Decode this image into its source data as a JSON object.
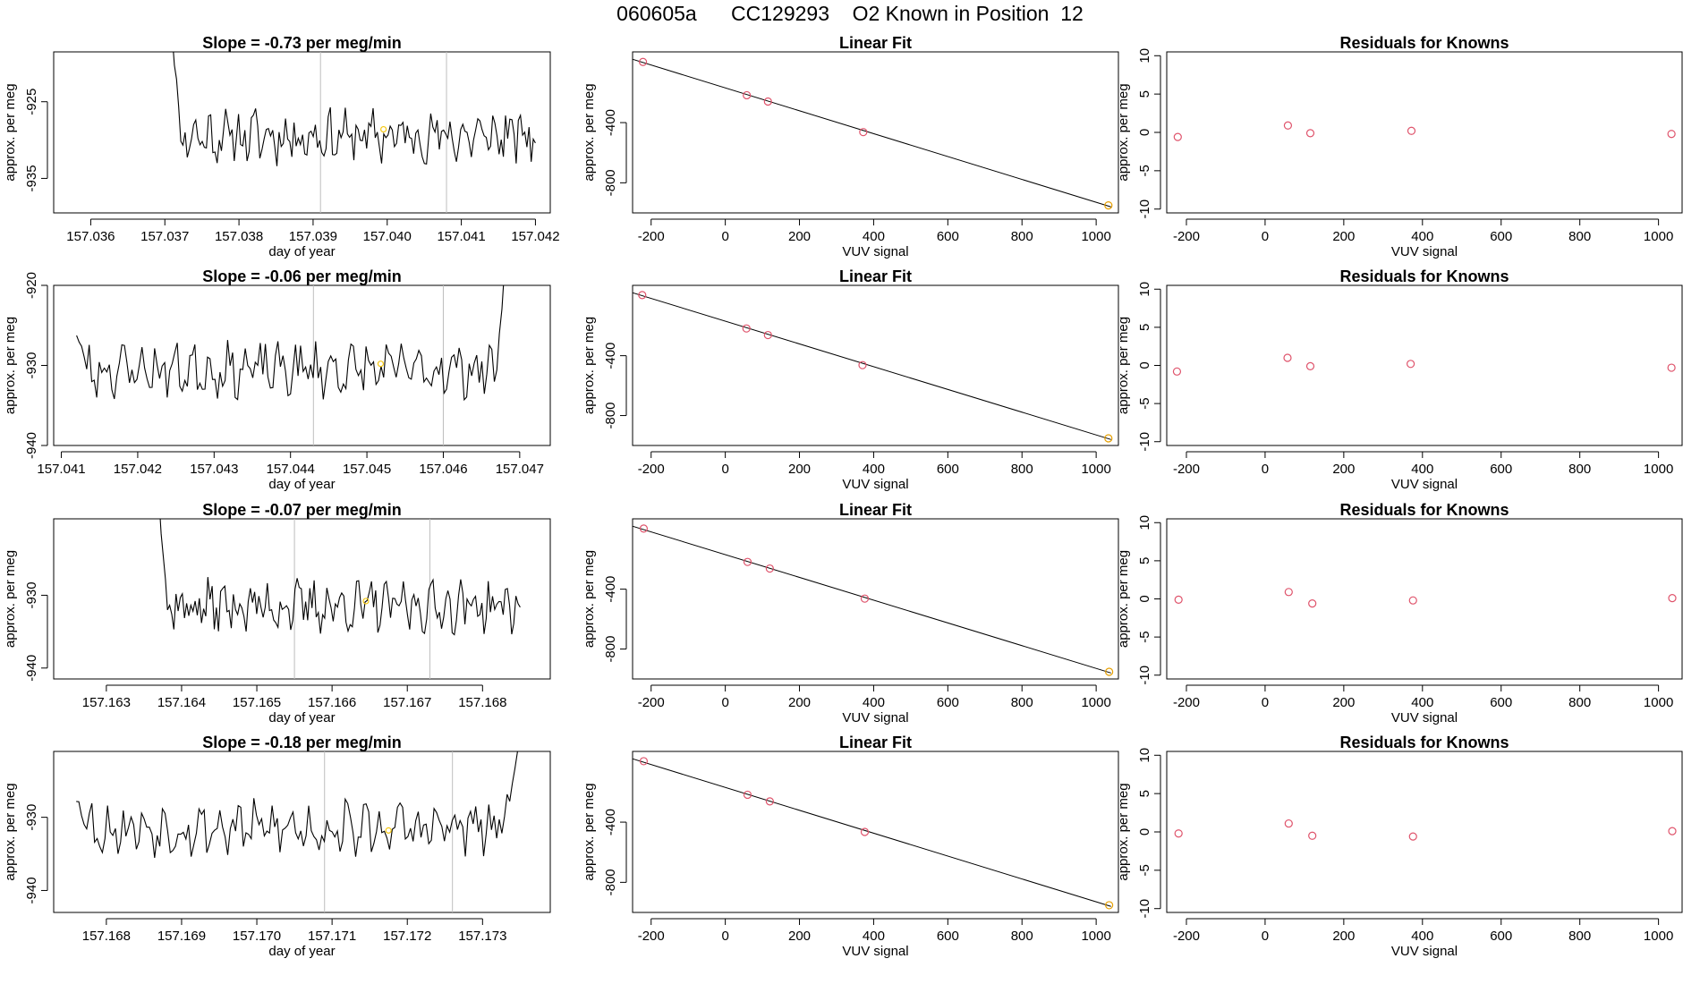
{
  "title": "060605a      CC129293    O2 Known in Position  12",
  "colors": {
    "line": "#000000",
    "point": "#DF536B",
    "highlight": "#F5C710",
    "vline": "#BEBEBE",
    "fitline": "#000000"
  },
  "chart_data": [
    {
      "type": "line",
      "row": 0,
      "col": 0,
      "title": "Slope =  -0.73  per meg/min",
      "xlabel": "day of year",
      "ylabel": "approx. per meg",
      "xlim": [
        157.0355,
        157.0422
      ],
      "ylim": [
        -939.5,
        -918.5
      ],
      "xticks": [
        157.036,
        157.037,
        157.038,
        157.039,
        157.04,
        157.041,
        157.042
      ],
      "xtick_labels": [
        "157.036",
        "157.037",
        "157.038",
        "157.039",
        "157.040",
        "157.041",
        "157.042"
      ],
      "yticks": [
        -925,
        -935
      ],
      "ytick_labels": [
        "-925",
        "-935"
      ],
      "vlines": [
        157.0391,
        157.0408
      ],
      "series_start": 157.0371,
      "series_end": 157.042,
      "start_y": -916,
      "level": -929.5,
      "amplitude": 2.6,
      "seed": 11,
      "rise_at_end": false,
      "highlight_point": [
        157.03995,
        -928.6
      ]
    },
    {
      "type": "line",
      "row": 1,
      "col": 0,
      "title": "Slope =  -0.06  per meg/min",
      "xlabel": "day of year",
      "ylabel": "approx. per meg",
      "xlim": [
        157.0409,
        157.0474
      ],
      "ylim": [
        -940,
        -920
      ],
      "xticks": [
        157.041,
        157.042,
        157.043,
        157.044,
        157.045,
        157.046,
        157.047
      ],
      "xtick_labels": [
        "157.041",
        "157.042",
        "157.043",
        "157.044",
        "157.045",
        "157.046",
        "157.047"
      ],
      "yticks": [
        -920,
        -930,
        -940
      ],
      "ytick_labels": [
        "-920",
        "-930",
        "-940"
      ],
      "vlines": [
        157.0443,
        157.046
      ],
      "series_start": 157.0412,
      "series_end": 157.0468,
      "start_y": -926,
      "level": -930.5,
      "amplitude": 2.5,
      "seed": 23,
      "rise_at_end": true,
      "rise_from": 157.0467,
      "rise_to_y": -918,
      "highlight_point": [
        157.04518,
        -929.8
      ]
    },
    {
      "type": "line",
      "row": 2,
      "col": 0,
      "title": "Slope =  -0.07  per meg/min",
      "xlabel": "day of year",
      "ylabel": "approx. per meg",
      "xlim": [
        157.1623,
        157.1689
      ],
      "ylim": [
        -941.5,
        -919.5
      ],
      "xticks": [
        157.163,
        157.164,
        157.165,
        157.166,
        157.167,
        157.168
      ],
      "xtick_labels": [
        "157.163",
        "157.164",
        "157.165",
        "157.166",
        "157.167",
        "157.168"
      ],
      "yticks": [
        -930,
        -940
      ],
      "ytick_labels": [
        "-930",
        "-940"
      ],
      "vlines": [
        157.1655,
        157.1673
      ],
      "series_start": 157.1637,
      "series_end": 157.1685,
      "start_y": -917,
      "level": -931.5,
      "amplitude": 2.6,
      "seed": 37,
      "rise_at_end": false,
      "highlight_point": [
        157.16645,
        -930.8
      ]
    },
    {
      "type": "line",
      "row": 3,
      "col": 0,
      "title": "Slope =  -0.18  per meg/min",
      "xlabel": "day of year",
      "ylabel": "approx. per meg",
      "xlim": [
        157.1673,
        157.1739
      ],
      "ylim": [
        -943,
        -921
      ],
      "xticks": [
        157.168,
        157.169,
        157.17,
        157.171,
        157.172,
        157.173
      ],
      "xtick_labels": [
        "157.168",
        "157.169",
        "157.170",
        "157.171",
        "157.172",
        "157.173"
      ],
      "yticks": [
        -930,
        -940
      ],
      "ytick_labels": [
        "-930",
        "-940"
      ],
      "vlines": [
        157.1709,
        157.1726
      ],
      "series_start": 157.1676,
      "series_end": 157.1735,
      "start_y": -927,
      "level": -931.5,
      "amplitude": 2.7,
      "seed": 53,
      "rise_at_end": true,
      "rise_from": 157.1733,
      "rise_to_y": -918,
      "highlight_point": [
        157.17175,
        -931.8
      ]
    },
    {
      "type": "scatter",
      "row": 0,
      "col": 1,
      "title": "Linear Fit",
      "xlabel": "VUV signal",
      "ylabel": "approx. per meg",
      "xlim": [
        -250,
        1060
      ],
      "ylim": [
        -1000,
        70
      ],
      "xticks": [
        -200,
        0,
        200,
        400,
        600,
        800,
        1000
      ],
      "xtick_labels": [
        "-200",
        "0",
        "200",
        "400",
        "600",
        "800",
        "1000"
      ],
      "yticks": [
        -400,
        -800
      ],
      "ytick_labels": [
        "-400",
        "-800"
      ],
      "fit_line": [
        [
          -262,
          30
        ],
        [
          1040,
          -960
        ]
      ],
      "points": [
        [
          -222,
          3
        ],
        [
          58,
          -218
        ],
        [
          115,
          -260
        ],
        [
          372,
          -463
        ],
        [
          1033,
          -950
        ]
      ]
    },
    {
      "type": "scatter",
      "row": 1,
      "col": 1,
      "title": "Linear Fit",
      "xlabel": "VUV signal",
      "ylabel": "approx. per meg",
      "xlim": [
        -250,
        1060
      ],
      "ylim": [
        -1000,
        70
      ],
      "xticks": [
        -200,
        0,
        200,
        400,
        600,
        800,
        1000
      ],
      "xtick_labels": [
        "-200",
        "0",
        "200",
        "400",
        "600",
        "800",
        "1000"
      ],
      "yticks": [
        -400,
        -800
      ],
      "ytick_labels": [
        "-400",
        "-800"
      ],
      "fit_line": [
        [
          -262,
          30
        ],
        [
          1040,
          -960
        ]
      ],
      "points": [
        [
          -224,
          5
        ],
        [
          57,
          -218
        ],
        [
          115,
          -262
        ],
        [
          370,
          -463
        ],
        [
          1033,
          -952
        ]
      ]
    },
    {
      "type": "scatter",
      "row": 2,
      "col": 1,
      "title": "Linear Fit",
      "xlabel": "VUV signal",
      "ylabel": "approx. per meg",
      "xlim": [
        -250,
        1060
      ],
      "ylim": [
        -1000,
        70
      ],
      "xticks": [
        -200,
        0,
        200,
        400,
        600,
        800,
        1000
      ],
      "xtick_labels": [
        "-200",
        "0",
        "200",
        "400",
        "600",
        "800",
        "1000"
      ],
      "yticks": [
        -400,
        -800
      ],
      "ytick_labels": [
        "-400",
        "-800"
      ],
      "fit_line": [
        [
          -262,
          30
        ],
        [
          1040,
          -960
        ]
      ],
      "points": [
        [
          -220,
          5
        ],
        [
          60,
          -218
        ],
        [
          120,
          -262
        ],
        [
          376,
          -463
        ],
        [
          1035,
          -952
        ]
      ]
    },
    {
      "type": "scatter",
      "row": 3,
      "col": 1,
      "title": "Linear Fit",
      "xlabel": "VUV signal",
      "ylabel": "approx. per meg",
      "xlim": [
        -250,
        1060
      ],
      "ylim": [
        -1000,
        70
      ],
      "xticks": [
        -200,
        0,
        200,
        400,
        600,
        800,
        1000
      ],
      "xtick_labels": [
        "-200",
        "0",
        "200",
        "400",
        "600",
        "800",
        "1000"
      ],
      "yticks": [
        -400,
        -800
      ],
      "ytick_labels": [
        "-400",
        "-800"
      ],
      "fit_line": [
        [
          -262,
          30
        ],
        [
          1040,
          -960
        ]
      ],
      "points": [
        [
          -220,
          5
        ],
        [
          60,
          -218
        ],
        [
          120,
          -262
        ],
        [
          376,
          -465
        ],
        [
          1035,
          -952
        ]
      ]
    },
    {
      "type": "scatter",
      "row": 0,
      "col": 2,
      "title": "Residuals for Knowns",
      "xlabel": "VUV signal",
      "ylabel": "approx. per meg",
      "xlim": [
        -250,
        1060
      ],
      "ylim": [
        -10.5,
        10.5
      ],
      "xticks": [
        -200,
        0,
        200,
        400,
        600,
        800,
        1000
      ],
      "xtick_labels": [
        "-200",
        "0",
        "200",
        "400",
        "600",
        "800",
        "1000"
      ],
      "yticks": [
        10,
        5,
        0,
        -5,
        -10
      ],
      "ytick_labels": [
        "10",
        "5",
        "0",
        "-5",
        "-10"
      ],
      "points": [
        [
          -222,
          -0.6
        ],
        [
          58,
          0.9
        ],
        [
          115,
          -0.1
        ],
        [
          372,
          0.2
        ],
        [
          1033,
          -0.2
        ]
      ]
    },
    {
      "type": "scatter",
      "row": 1,
      "col": 2,
      "title": "Residuals for Knowns",
      "xlabel": "VUV signal",
      "ylabel": "approx. per meg",
      "xlim": [
        -250,
        1060
      ],
      "ylim": [
        -10.5,
        10.5
      ],
      "xticks": [
        -200,
        0,
        200,
        400,
        600,
        800,
        1000
      ],
      "xtick_labels": [
        "-200",
        "0",
        "200",
        "400",
        "600",
        "800",
        "1000"
      ],
      "yticks": [
        10,
        5,
        0,
        -5,
        -10
      ],
      "ytick_labels": [
        "10",
        "5",
        "0",
        "-5",
        "-10"
      ],
      "points": [
        [
          -224,
          -0.8
        ],
        [
          57,
          1.0
        ],
        [
          115,
          -0.1
        ],
        [
          370,
          0.2
        ],
        [
          1033,
          -0.3
        ]
      ]
    },
    {
      "type": "scatter",
      "row": 2,
      "col": 2,
      "title": "Residuals for Knowns",
      "xlabel": "VUV signal",
      "ylabel": "approx. per meg",
      "xlim": [
        -250,
        1060
      ],
      "ylim": [
        -10.5,
        10.5
      ],
      "xticks": [
        -200,
        0,
        200,
        400,
        600,
        800,
        1000
      ],
      "xtick_labels": [
        "-200",
        "0",
        "200",
        "400",
        "600",
        "800",
        "1000"
      ],
      "yticks": [
        10,
        5,
        0,
        -5,
        -10
      ],
      "ytick_labels": [
        "10",
        "5",
        "0",
        "-5",
        "-10"
      ],
      "points": [
        [
          -220,
          -0.1
        ],
        [
          60,
          0.9
        ],
        [
          120,
          -0.6
        ],
        [
          376,
          -0.2
        ],
        [
          1035,
          0.1
        ]
      ]
    },
    {
      "type": "scatter",
      "row": 3,
      "col": 2,
      "title": "Residuals for Knowns",
      "xlabel": "VUV signal",
      "ylabel": "approx. per meg",
      "xlim": [
        -250,
        1060
      ],
      "ylim": [
        -10.5,
        10.5
      ],
      "xticks": [
        -200,
        0,
        200,
        400,
        600,
        800,
        1000
      ],
      "xtick_labels": [
        "-200",
        "0",
        "200",
        "400",
        "600",
        "800",
        "1000"
      ],
      "yticks": [
        10,
        5,
        0,
        -5,
        -10
      ],
      "ytick_labels": [
        "10",
        "5",
        "0",
        "-5",
        "-10"
      ],
      "points": [
        [
          -220,
          -0.2
        ],
        [
          60,
          1.1
        ],
        [
          120,
          -0.5
        ],
        [
          376,
          -0.6
        ],
        [
          1035,
          0.1
        ]
      ]
    }
  ]
}
